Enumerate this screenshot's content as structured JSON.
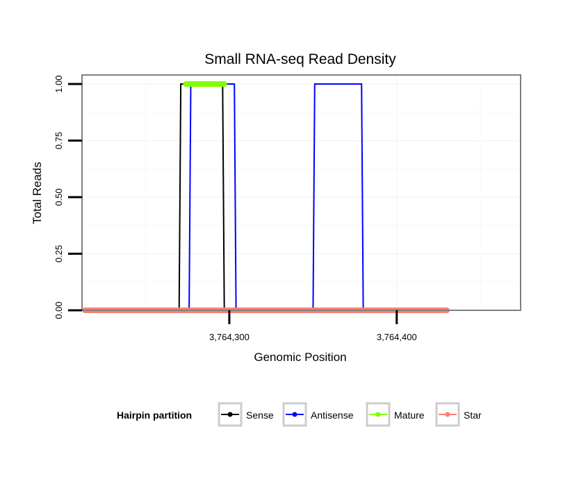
{
  "chart_data": {
    "type": "line",
    "title": "Small RNA-seq Read Density",
    "xlabel": "Genomic Position",
    "ylabel": "Total Reads",
    "xlim": [
      3764212,
      3764474
    ],
    "ylim": [
      0,
      1.04
    ],
    "x_ticks": [
      {
        "value": 3764300,
        "label": "3,764,300"
      },
      {
        "value": 3764400,
        "label": "3,764,400"
      }
    ],
    "y_ticks": [
      {
        "value": 0,
        "label": "0.00"
      },
      {
        "value": 0.25,
        "label": "0.25"
      },
      {
        "value": 0.5,
        "label": "0.50"
      },
      {
        "value": 0.75,
        "label": "0.75"
      },
      {
        "value": 1,
        "label": "1.00"
      }
    ],
    "grid": true,
    "series": [
      {
        "name": "Sense",
        "color": "#000000",
        "width": 2,
        "points": [
          [
            3764224,
            0
          ],
          [
            3764270,
            0
          ],
          [
            3764271,
            1
          ],
          [
            3764296,
            1
          ],
          [
            3764297,
            0
          ],
          [
            3764472,
            0
          ]
        ]
      },
      {
        "name": "Antisense",
        "color": "#0000ff",
        "width": 2,
        "points": [
          [
            3764276,
            0
          ],
          [
            3764277,
            1
          ],
          [
            3764303,
            1
          ],
          [
            3764304,
            0
          ],
          [
            3764350,
            0
          ],
          [
            3764351,
            1
          ],
          [
            3764379,
            1
          ],
          [
            3764380,
            0
          ],
          [
            3764472,
            0
          ]
        ]
      }
    ],
    "segments": [
      {
        "name": "Mature",
        "color": "#7fff00",
        "x_start": 3764274,
        "x_end": 3764297,
        "y": 1
      },
      {
        "name": "Mature",
        "color": "#7fff00",
        "x_start": 3764296,
        "x_end": 3764302,
        "y": 0
      },
      {
        "name": "Star",
        "color": "#fa8072",
        "x_start": 3764210,
        "x_end": 3764430,
        "y": 0
      }
    ],
    "legend": {
      "title": "Hairpin partition",
      "position": "bottom",
      "items": [
        {
          "label": "Sense",
          "color": "#000000"
        },
        {
          "label": "Antisense",
          "color": "#0000ff"
        },
        {
          "label": "Mature",
          "color": "#7fff00"
        },
        {
          "label": "Star",
          "color": "#fa8072"
        }
      ]
    }
  }
}
